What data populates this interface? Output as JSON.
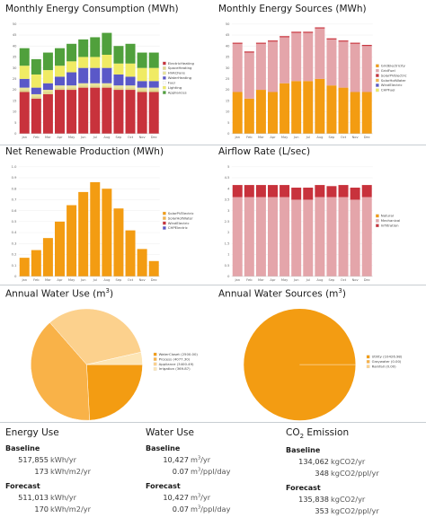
{
  "charts": {
    "energy_consumption": {
      "title": "Monthly Energy Consumption (MWh)",
      "y_ticks": [
        "0",
        "5",
        "10",
        "15",
        "20",
        "25",
        "30",
        "35",
        "40",
        "45",
        "50"
      ],
      "legend": [
        "ElectricHeating",
        "SpaceHeating",
        "HVACFans",
        "WaterHeating",
        "Fuel",
        "Lighting",
        "Appliances"
      ]
    },
    "energy_sources": {
      "title": "Monthly Energy Sources (MWh)",
      "y_ticks": [
        "0",
        "5",
        "10",
        "15",
        "20",
        "25",
        "30",
        "35",
        "40",
        "45",
        "50"
      ],
      "legend": [
        "GridElectricity",
        "GridFuel",
        "SolarPVElectric",
        "SolarHotWater",
        "WindElectric",
        "CHPFuel"
      ]
    },
    "renewable": {
      "title": "Net Renewable Production (MWh)",
      "y_ticks": [
        "0",
        "0.1",
        "0.2",
        "0.3",
        "0.4",
        "0.5",
        "0.6",
        "0.7",
        "0.8",
        "0.9",
        "1.0"
      ],
      "legend": [
        "SolarPVElectric",
        "SolarHotWater",
        "WindElectric",
        "CHPElectric"
      ]
    },
    "airflow": {
      "title": "Airflow Rate (L/sec)",
      "y_ticks": [
        "0",
        "0.5",
        "1",
        "1.5",
        "2",
        "2.5",
        "3",
        "3.5",
        "4",
        "4.5",
        "5"
      ],
      "legend": [
        "Natural",
        "Mechanical",
        "Infiltration"
      ]
    },
    "water_use": {
      "title_main": "Annual Water Use (m",
      "title_sup": "3",
      "title_end": ")",
      "legend": [
        "WaterCloset (2500.00)",
        "Process (4077.30)",
        "Appliance (3400.49)",
        "Irrigation (369.87)"
      ]
    },
    "water_sources": {
      "title_main": "Annual Water Sources (m",
      "title_sup": "3",
      "title_end": ")",
      "legend": [
        "Utility (10426.98)",
        "Graywater (0.00)",
        "Rainfall (0.00)"
      ]
    }
  },
  "chart_data": [
    {
      "type": "bar",
      "title": "Monthly Energy Consumption (MWh)",
      "stacked": true,
      "categories": [
        "Jan",
        "Feb",
        "Mar",
        "Apr",
        "May",
        "Jun",
        "Jul",
        "Aug",
        "Sep",
        "Oct",
        "Nov",
        "Dec"
      ],
      "ylim": [
        0,
        50
      ],
      "series": [
        {
          "name": "Appliances",
          "color": "#c8323c",
          "values": [
            19,
            16,
            18,
            20,
            20,
            21,
            21,
            21,
            20,
            20,
            19,
            19
          ]
        },
        {
          "name": "Lighting",
          "color": "#e1d68c",
          "values": [
            1,
            1,
            1,
            1,
            1,
            1,
            1,
            1,
            1,
            1,
            1,
            1
          ]
        },
        {
          "name": "Fuel",
          "color": "#e8e49a",
          "values": [
            1,
            1,
            1,
            1,
            1,
            1,
            1,
            1,
            1,
            1,
            1,
            1
          ]
        },
        {
          "name": "WaterHeating",
          "color": "#5a58c8",
          "values": [
            4,
            3,
            3,
            4,
            6,
            7,
            7,
            7,
            5,
            4,
            3,
            3
          ]
        },
        {
          "name": "HVACFans",
          "color": "#ffffff",
          "values": [
            0,
            0,
            0,
            0,
            0,
            0,
            0,
            0,
            0,
            0,
            0,
            0
          ]
        },
        {
          "name": "SpaceHeating",
          "color": "#f0eb64",
          "values": [
            6,
            6,
            6,
            5,
            5,
            5,
            5,
            6,
            5,
            6,
            6,
            6
          ]
        },
        {
          "name": "ElectricHeating",
          "color": "#50a03c",
          "values": [
            8,
            7,
            8,
            8,
            8,
            8,
            9,
            10,
            8,
            9,
            7,
            7
          ]
        }
      ]
    },
    {
      "type": "bar",
      "title": "Monthly Energy Sources (MWh)",
      "stacked": true,
      "categories": [
        "Jan",
        "Feb",
        "Mar",
        "Apr",
        "May",
        "Jun",
        "Jul",
        "Aug",
        "Sep",
        "Oct",
        "Nov",
        "Dec"
      ],
      "ylim": [
        0,
        50
      ],
      "series": [
        {
          "name": "GridElectricity",
          "color": "#f39c12",
          "values": [
            19,
            16,
            20,
            19,
            23,
            24,
            24,
            25,
            22,
            21,
            19,
            19
          ]
        },
        {
          "name": "GridFuel",
          "color": "#e4a5aa",
          "values": [
            22,
            21,
            21,
            23,
            21,
            22,
            22,
            23,
            21,
            21,
            22,
            21
          ]
        },
        {
          "name": "SolarPVElectric",
          "color": "#c8323c",
          "values": [
            0.5,
            0.5,
            0.5,
            0.5,
            0.5,
            0.5,
            0.5,
            0.5,
            0.5,
            0.5,
            0.5,
            0.5
          ]
        },
        {
          "name": "SolarHotWater",
          "color": "#f5b44a",
          "values": [
            0,
            0,
            0,
            0,
            0,
            0,
            0,
            0,
            0,
            0,
            0,
            0
          ]
        },
        {
          "name": "WindElectric",
          "color": "#5a58c8",
          "values": [
            0,
            0,
            0,
            0,
            0,
            0,
            0,
            0,
            0,
            0,
            0,
            0
          ]
        },
        {
          "name": "CHPFuel",
          "color": "#f0eb64",
          "values": [
            0,
            0,
            0,
            0,
            0,
            0,
            0,
            0,
            0,
            0,
            0,
            0
          ]
        }
      ]
    },
    {
      "type": "bar",
      "title": "Net Renewable Production (MWh)",
      "stacked": true,
      "categories": [
        "Jan",
        "Feb",
        "Mar",
        "Apr",
        "May",
        "Jun",
        "Jul",
        "Aug",
        "Sep",
        "Oct",
        "Nov",
        "Dec"
      ],
      "ylim": [
        0,
        1.0
      ],
      "series": [
        {
          "name": "SolarPVElectric",
          "color": "#f39c12",
          "values": [
            0.17,
            0.24,
            0.35,
            0.5,
            0.65,
            0.77,
            0.86,
            0.8,
            0.62,
            0.42,
            0.25,
            0.14
          ]
        },
        {
          "name": "SolarHotWater",
          "color": "#f5b44a",
          "values": [
            0,
            0,
            0,
            0,
            0,
            0,
            0,
            0,
            0,
            0,
            0,
            0
          ]
        },
        {
          "name": "WindElectric",
          "color": "#c8323c",
          "values": [
            0,
            0,
            0,
            0,
            0,
            0,
            0,
            0,
            0,
            0,
            0,
            0
          ]
        },
        {
          "name": "CHPElectric",
          "color": "#5a58c8",
          "values": [
            0,
            0,
            0,
            0,
            0,
            0,
            0,
            0,
            0,
            0,
            0,
            0
          ]
        }
      ]
    },
    {
      "type": "bar",
      "title": "Airflow Rate (L/sec)",
      "stacked": true,
      "categories": [
        "Jan",
        "Feb",
        "Mar",
        "Apr",
        "May",
        "Jun",
        "Jul",
        "Aug",
        "Sep",
        "Oct",
        "Nov",
        "Dec"
      ],
      "ylim": [
        0,
        5
      ],
      "series": [
        {
          "name": "Natural",
          "color": "#f39c12",
          "values": [
            0,
            0,
            0,
            0,
            0,
            0,
            0,
            0,
            0,
            0,
            0,
            0
          ]
        },
        {
          "name": "Mechanical",
          "color": "#e4a5aa",
          "values": [
            3.62,
            3.62,
            3.62,
            3.62,
            3.62,
            3.5,
            3.5,
            3.62,
            3.62,
            3.62,
            3.5,
            3.62
          ]
        },
        {
          "name": "Infiltration",
          "color": "#c8323c",
          "values": [
            0.55,
            0.55,
            0.55,
            0.55,
            0.55,
            0.55,
            0.55,
            0.55,
            0.5,
            0.55,
            0.55,
            0.55
          ]
        }
      ]
    },
    {
      "type": "pie",
      "title": "Annual Water Use (m3)",
      "labels": [
        "WaterCloset",
        "Process",
        "Appliance",
        "Irrigation"
      ],
      "values": [
        2500.0,
        4077.3,
        3400.49,
        369.87
      ],
      "colors": [
        "#f39c12",
        "#f9b248",
        "#fcd18d",
        "#fde5b5"
      ]
    },
    {
      "type": "pie",
      "title": "Annual Water Sources (m3)",
      "labels": [
        "Utility",
        "Graywater",
        "Rainfall"
      ],
      "values": [
        10426.98,
        0.0,
        0.0
      ],
      "colors": [
        "#f39c12",
        "#f9b248",
        "#fcd18d"
      ]
    }
  ],
  "summary": {
    "energy": {
      "title": "Energy Use",
      "baseline_label": "Baseline",
      "baseline": [
        {
          "value": "517,855",
          "unit": "kWh/yr"
        },
        {
          "value": "173",
          "unit": "kWh/m2/yr"
        }
      ],
      "forecast_label": "Forecast",
      "forecast": [
        {
          "value": "511,013",
          "unit": "kWh/yr"
        },
        {
          "value": "170",
          "unit": "kWh/m2/yr"
        }
      ]
    },
    "water": {
      "title": "Water Use",
      "baseline_label": "Baseline",
      "baseline": [
        {
          "value": "10,427",
          "unit_main": "m",
          "unit_sup": "3",
          "unit_end": "/yr"
        },
        {
          "value": "0.07",
          "unit_main": "m",
          "unit_sup": "3",
          "unit_end": "/ppl/day"
        }
      ],
      "forecast_label": "Forecast",
      "forecast": [
        {
          "value": "10,427",
          "unit_main": "m",
          "unit_sup": "3",
          "unit_end": "/yr"
        },
        {
          "value": "0.07",
          "unit_main": "m",
          "unit_sup": "3",
          "unit_end": "/ppl/day"
        }
      ]
    },
    "co2": {
      "title_main": "CO",
      "title_sub": "2",
      "title_end": " Emission",
      "baseline_label": "Baseline",
      "baseline": [
        {
          "value": "134,062",
          "unit": "kgCO2/yr"
        },
        {
          "value": "348",
          "unit": "kgCO2/ppl/yr"
        }
      ],
      "forecast_label": "Forecast",
      "forecast": [
        {
          "value": "135,838",
          "unit": "kgCO2/yr"
        },
        {
          "value": "353",
          "unit": "kgCO2/ppl/yr"
        }
      ]
    }
  }
}
